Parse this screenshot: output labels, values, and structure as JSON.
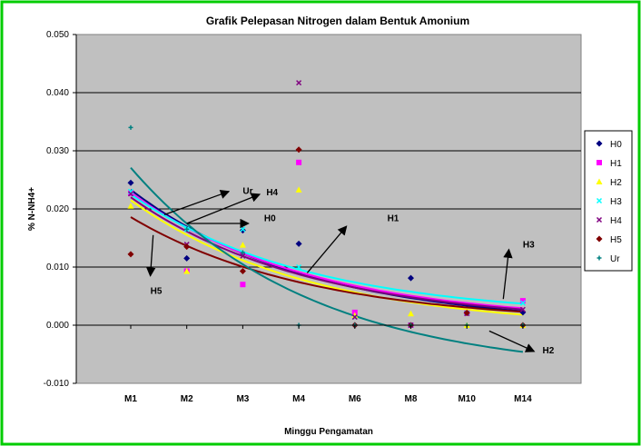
{
  "chart_data": {
    "type": "scatter",
    "title": "Grafik Pelepasan Nitrogen dalam Bentuk Amonium",
    "xlabel": "Minggu Pengamatan",
    "ylabel": "% N-NH4+",
    "categories": [
      "M1",
      "M2",
      "M3",
      "M4",
      "M6",
      "M8",
      "M10",
      "M14"
    ],
    "ylim": [
      -0.01,
      0.05
    ],
    "yticks": [
      "-0.010",
      "0.000",
      "0.010",
      "0.020",
      "0.030",
      "0.040",
      "0.050"
    ],
    "grid": true,
    "legend_position": "right",
    "trendline": "exponential",
    "colors": {
      "plot_bg": "#c0c0c0",
      "frame": "#00cc00",
      "grid": "#000000"
    },
    "series": [
      {
        "name": "H0",
        "color": "#000080",
        "marker": "diamond",
        "values": [
          0.0245,
          0.0115,
          0.0163,
          0.014,
          0.0,
          0.0081,
          0.0021,
          0.0022
        ],
        "trend_start": 0.0233,
        "trend_end": 0.0024
      },
      {
        "name": "H1",
        "color": "#ff00ff",
        "marker": "square",
        "values": [
          0.0227,
          0.0093,
          0.007,
          0.028,
          0.0022,
          0.0,
          0.0021,
          0.0042
        ],
        "trend_start": 0.0228,
        "trend_end": 0.0029
      },
      {
        "name": "H2",
        "color": "#ffff00",
        "marker": "triangle",
        "values": [
          0.0205,
          0.0093,
          0.0138,
          0.0233,
          0.0017,
          0.002,
          0.0,
          0.0
        ],
        "trend_start": 0.0215,
        "trend_end": 0.0018
      },
      {
        "name": "H3",
        "color": "#00ffff",
        "marker": "x",
        "values": [
          0.023,
          0.0165,
          0.0165,
          0.01,
          0.0014,
          0.0,
          0.0021,
          0.0038
        ],
        "trend_start": 0.0225,
        "trend_end": 0.0037
      },
      {
        "name": "H4",
        "color": "#800080",
        "marker": "x",
        "values": [
          0.0226,
          0.0139,
          0.0119,
          0.0417,
          0.0014,
          0.0,
          0.002,
          0.0027
        ],
        "trend_start": 0.022,
        "trend_end": 0.0027
      },
      {
        "name": "H5",
        "color": "#800000",
        "marker": "diamond",
        "values": [
          0.0122,
          0.0135,
          0.0093,
          0.0302,
          0.0,
          0.0,
          0.0021,
          0.0
        ],
        "trend_start": 0.0186,
        "trend_end": 0.0023
      },
      {
        "name": "Ur",
        "color": "#008080",
        "marker": "plus",
        "values": [
          0.034,
          0.0165,
          0.0125,
          0.0,
          0.0,
          0.0,
          0.0,
          0.0
        ],
        "trend_start": 0.0271,
        "trend_end": -0.0046
      }
    ],
    "annotations": [
      {
        "text": "Ur",
        "x": 2.0,
        "y": 0.0232
      },
      {
        "text": "H4",
        "x": 2.42,
        "y": 0.023
      },
      {
        "text": "H0",
        "x": 2.38,
        "y": 0.0185
      },
      {
        "text": "H1",
        "x": 4.58,
        "y": 0.0185
      },
      {
        "text": "H5",
        "x": 0.35,
        "y": 0.006
      },
      {
        "text": "H3",
        "x": 7.0,
        "y": 0.014
      },
      {
        "text": "H2",
        "x": 7.35,
        "y": -0.0042
      }
    ],
    "arrows": [
      {
        "from": [
          0.6,
          0.019
        ],
        "to": [
          1.75,
          0.023
        ]
      },
      {
        "from": [
          1.0,
          0.0175
        ],
        "to": [
          2.3,
          0.0225
        ]
      },
      {
        "from": [
          1.0,
          0.0175
        ],
        "to": [
          2.1,
          0.0175
        ]
      },
      {
        "from": [
          3.15,
          0.009
        ],
        "to": [
          3.85,
          0.017
        ]
      },
      {
        "from": [
          0.4,
          0.0155
        ],
        "to": [
          0.35,
          0.0085
        ]
      },
      {
        "from": [
          6.65,
          0.0045
        ],
        "to": [
          6.75,
          0.013
        ]
      },
      {
        "from": [
          6.4,
          -0.001
        ],
        "to": [
          7.2,
          -0.0045
        ]
      }
    ]
  }
}
